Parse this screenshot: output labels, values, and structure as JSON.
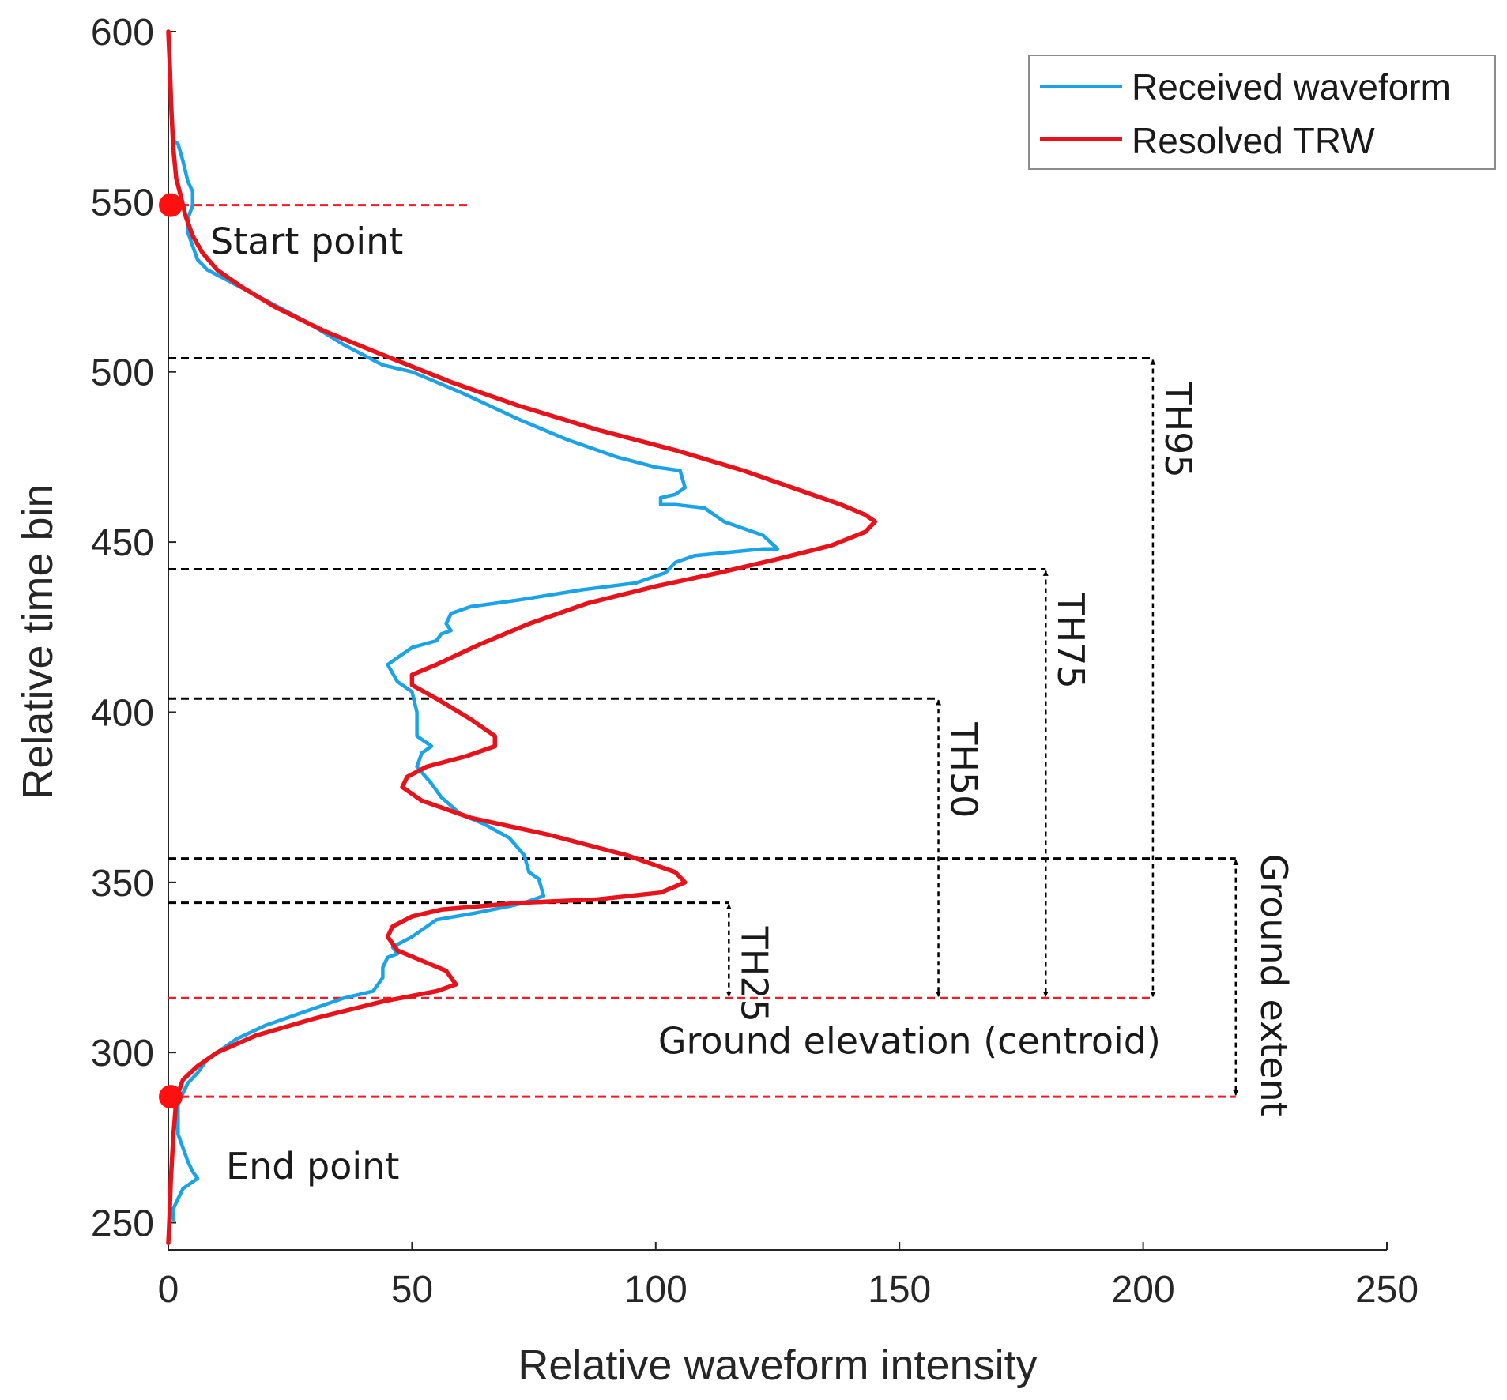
{
  "chart_data": {
    "type": "line",
    "xlabel": "Relative waveform intensity",
    "ylabel": "Relative time bin",
    "xlim": [
      0,
      250
    ],
    "ylim": [
      242,
      600
    ],
    "xticks": [
      0,
      50,
      100,
      150,
      200,
      250
    ],
    "yticks": [
      250,
      300,
      350,
      400,
      450,
      500,
      550,
      600
    ],
    "grid": false,
    "legend_position": "top-right",
    "colors": {
      "received": "#1aa3e8",
      "resolved": "#e8121b",
      "marker": "#ff1010",
      "reference_dash": "#ee1c25",
      "threshold_dash": "#000000"
    },
    "series": [
      {
        "name": "Received waveform",
        "points": [
          [
            1,
            568
          ],
          [
            2,
            567
          ],
          [
            3,
            562
          ],
          [
            4,
            556
          ],
          [
            5,
            553
          ],
          [
            5,
            549
          ],
          [
            4,
            545
          ],
          [
            4,
            541
          ],
          [
            5,
            537
          ],
          [
            6,
            533
          ],
          [
            8,
            530
          ],
          [
            12,
            527
          ],
          [
            20,
            521
          ],
          [
            28,
            515
          ],
          [
            36,
            508
          ],
          [
            44,
            502
          ],
          [
            50,
            500
          ],
          [
            60,
            494
          ],
          [
            72,
            486
          ],
          [
            82,
            480
          ],
          [
            92,
            475
          ],
          [
            100,
            472
          ],
          [
            105,
            471
          ],
          [
            106,
            466
          ],
          [
            104,
            464
          ],
          [
            101,
            463
          ],
          [
            101,
            461
          ],
          [
            104,
            461
          ],
          [
            110,
            460
          ],
          [
            114,
            456
          ],
          [
            118,
            454
          ],
          [
            122,
            452
          ],
          [
            125,
            448
          ],
          [
            122,
            448
          ],
          [
            115,
            447
          ],
          [
            108,
            446
          ],
          [
            104,
            444
          ],
          [
            102,
            441
          ],
          [
            96,
            438
          ],
          [
            85,
            436
          ],
          [
            72,
            433
          ],
          [
            62,
            431
          ],
          [
            58,
            429
          ],
          [
            57,
            426
          ],
          [
            58,
            424
          ],
          [
            56,
            423
          ],
          [
            55,
            421
          ],
          [
            50,
            419
          ],
          [
            45,
            414
          ],
          [
            47,
            409
          ],
          [
            50,
            406
          ],
          [
            51,
            400
          ],
          [
            51,
            393
          ],
          [
            54,
            390
          ],
          [
            52,
            388
          ],
          [
            51,
            384
          ],
          [
            54,
            379
          ],
          [
            56,
            375
          ],
          [
            60,
            370
          ],
          [
            65,
            367
          ],
          [
            70,
            363
          ],
          [
            73,
            358
          ],
          [
            74,
            353
          ],
          [
            76,
            351
          ],
          [
            77,
            346
          ],
          [
            73,
            344
          ],
          [
            70,
            343
          ],
          [
            63,
            341
          ],
          [
            55,
            339
          ],
          [
            53,
            337
          ],
          [
            50,
            334
          ],
          [
            46,
            331
          ],
          [
            47,
            329
          ],
          [
            45,
            328
          ],
          [
            44,
            325
          ],
          [
            44,
            322
          ],
          [
            42,
            318
          ],
          [
            36,
            316
          ],
          [
            28,
            312
          ],
          [
            20,
            308
          ],
          [
            14,
            304
          ],
          [
            10,
            300
          ],
          [
            8,
            298
          ],
          [
            6,
            294
          ],
          [
            4,
            291
          ],
          [
            3,
            288
          ],
          [
            2,
            285
          ],
          [
            2,
            280
          ],
          [
            2,
            276
          ],
          [
            3,
            272
          ],
          [
            4,
            268
          ],
          [
            5,
            265
          ],
          [
            6,
            263
          ],
          [
            5,
            262
          ],
          [
            3,
            260
          ],
          [
            2,
            257
          ],
          [
            1,
            254
          ],
          [
            1,
            251
          ]
        ]
      },
      {
        "name": "Resolved TRW",
        "points": [
          [
            0,
            600
          ],
          [
            0.3,
            590
          ],
          [
            0.6,
            578
          ],
          [
            1,
            566
          ],
          [
            1.6,
            557
          ],
          [
            2.5,
            552
          ],
          [
            3.5,
            546
          ],
          [
            5,
            540
          ],
          [
            7,
            535
          ],
          [
            10,
            530
          ],
          [
            15,
            525
          ],
          [
            22,
            519
          ],
          [
            32,
            512
          ],
          [
            44,
            505
          ],
          [
            58,
            497
          ],
          [
            72,
            490
          ],
          [
            88,
            483
          ],
          [
            104,
            477
          ],
          [
            118,
            471
          ],
          [
            130,
            465
          ],
          [
            138,
            461
          ],
          [
            143,
            458
          ],
          [
            145,
            456
          ],
          [
            143,
            453
          ],
          [
            136,
            449
          ],
          [
            125,
            445
          ],
          [
            113,
            441
          ],
          [
            100,
            437
          ],
          [
            86,
            432
          ],
          [
            74,
            426
          ],
          [
            64,
            420
          ],
          [
            55,
            414
          ],
          [
            50,
            411
          ],
          [
            50,
            408
          ],
          [
            55,
            404
          ],
          [
            62,
            398
          ],
          [
            67,
            393
          ],
          [
            67,
            390
          ],
          [
            61,
            387
          ],
          [
            53,
            384
          ],
          [
            49,
            381
          ],
          [
            48,
            378
          ],
          [
            52,
            374
          ],
          [
            62,
            369
          ],
          [
            78,
            364
          ],
          [
            94,
            358
          ],
          [
            104,
            353
          ],
          [
            106,
            350
          ],
          [
            101,
            347
          ],
          [
            88,
            345
          ],
          [
            72,
            344
          ],
          [
            56,
            342
          ],
          [
            50,
            340
          ],
          [
            46,
            337
          ],
          [
            45,
            334
          ],
          [
            47,
            330
          ],
          [
            52,
            327
          ],
          [
            57,
            324
          ],
          [
            59,
            320
          ],
          [
            55,
            318
          ],
          [
            44,
            315
          ],
          [
            30,
            310
          ],
          [
            18,
            305
          ],
          [
            10,
            300
          ],
          [
            6,
            296
          ],
          [
            3,
            292
          ],
          [
            2,
            288
          ],
          [
            1.5,
            284
          ],
          [
            1,
            275
          ],
          [
            0.5,
            262
          ],
          [
            0.2,
            250
          ],
          [
            0,
            244
          ]
        ]
      }
    ],
    "markers": [
      {
        "x": 0,
        "y": 549,
        "label": "Start point"
      },
      {
        "x": 0,
        "y": 287,
        "label": "End point"
      }
    ],
    "reference_lines": [
      {
        "y": 549,
        "x_end": 62,
        "style": "red-dashed"
      },
      {
        "y": 316,
        "x_end": 202,
        "style": "red-dashed",
        "label": "Ground elevation (centroid)"
      },
      {
        "y": 287,
        "x_end": 219,
        "style": "red-dashed"
      }
    ],
    "threshold_lines": [
      {
        "label": "TH95",
        "y": 504,
        "x_end": 202
      },
      {
        "label": "TH75",
        "y": 442,
        "x_end": 180
      },
      {
        "label": "TH50",
        "y": 404,
        "x_end": 158
      },
      {
        "label": "TH25",
        "y": 344,
        "x_end": 115
      }
    ],
    "ground_extent": {
      "label": "Ground extent",
      "y_top": 357,
      "y_bottom": 287,
      "x": 219
    }
  }
}
